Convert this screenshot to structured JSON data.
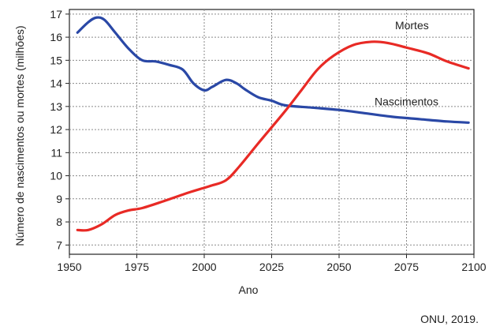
{
  "chart_data": {
    "type": "line",
    "title": "",
    "xlabel": "Ano",
    "ylabel": "Número de nascimentos ou mortes (milhões)",
    "xlim": [
      1950,
      2100
    ],
    "ylim": [
      6.6,
      17.2
    ],
    "x_ticks": [
      1950,
      1975,
      2000,
      2025,
      2050,
      2075,
      2100
    ],
    "y_ticks": [
      7,
      8,
      9,
      10,
      11,
      12,
      13,
      14,
      15,
      16,
      17
    ],
    "grid": true,
    "series": [
      {
        "name": "Nascimentos",
        "color": "#2a48a6",
        "points": [
          [
            1953,
            16.2
          ],
          [
            1957,
            16.65
          ],
          [
            1960,
            16.85
          ],
          [
            1963,
            16.75
          ],
          [
            1967,
            16.2
          ],
          [
            1972,
            15.5
          ],
          [
            1977,
            15.0
          ],
          [
            1982,
            14.95
          ],
          [
            1987,
            14.8
          ],
          [
            1992,
            14.6
          ],
          [
            1996,
            14.0
          ],
          [
            2000,
            13.7
          ],
          [
            2003,
            13.85
          ],
          [
            2008,
            14.15
          ],
          [
            2012,
            14.0
          ],
          [
            2015,
            13.75
          ],
          [
            2020,
            13.4
          ],
          [
            2025,
            13.25
          ],
          [
            2030,
            13.05
          ],
          [
            2040,
            12.95
          ],
          [
            2050,
            12.85
          ],
          [
            2060,
            12.7
          ],
          [
            2070,
            12.55
          ],
          [
            2080,
            12.45
          ],
          [
            2090,
            12.35
          ],
          [
            2098,
            12.3
          ]
        ]
      },
      {
        "name": "Mortes",
        "color": "#e82a25",
        "points": [
          [
            1953,
            7.65
          ],
          [
            1957,
            7.65
          ],
          [
            1962,
            7.9
          ],
          [
            1967,
            8.3
          ],
          [
            1972,
            8.5
          ],
          [
            1977,
            8.6
          ],
          [
            1985,
            8.9
          ],
          [
            1995,
            9.3
          ],
          [
            2002,
            9.55
          ],
          [
            2008,
            9.8
          ],
          [
            2013,
            10.4
          ],
          [
            2020,
            11.4
          ],
          [
            2030,
            12.8
          ],
          [
            2036,
            13.7
          ],
          [
            2042,
            14.6
          ],
          [
            2048,
            15.2
          ],
          [
            2055,
            15.65
          ],
          [
            2062,
            15.8
          ],
          [
            2068,
            15.75
          ],
          [
            2075,
            15.55
          ],
          [
            2083,
            15.3
          ],
          [
            2090,
            14.95
          ],
          [
            2098,
            14.65
          ]
        ]
      }
    ]
  },
  "source": "ONU, 2019."
}
